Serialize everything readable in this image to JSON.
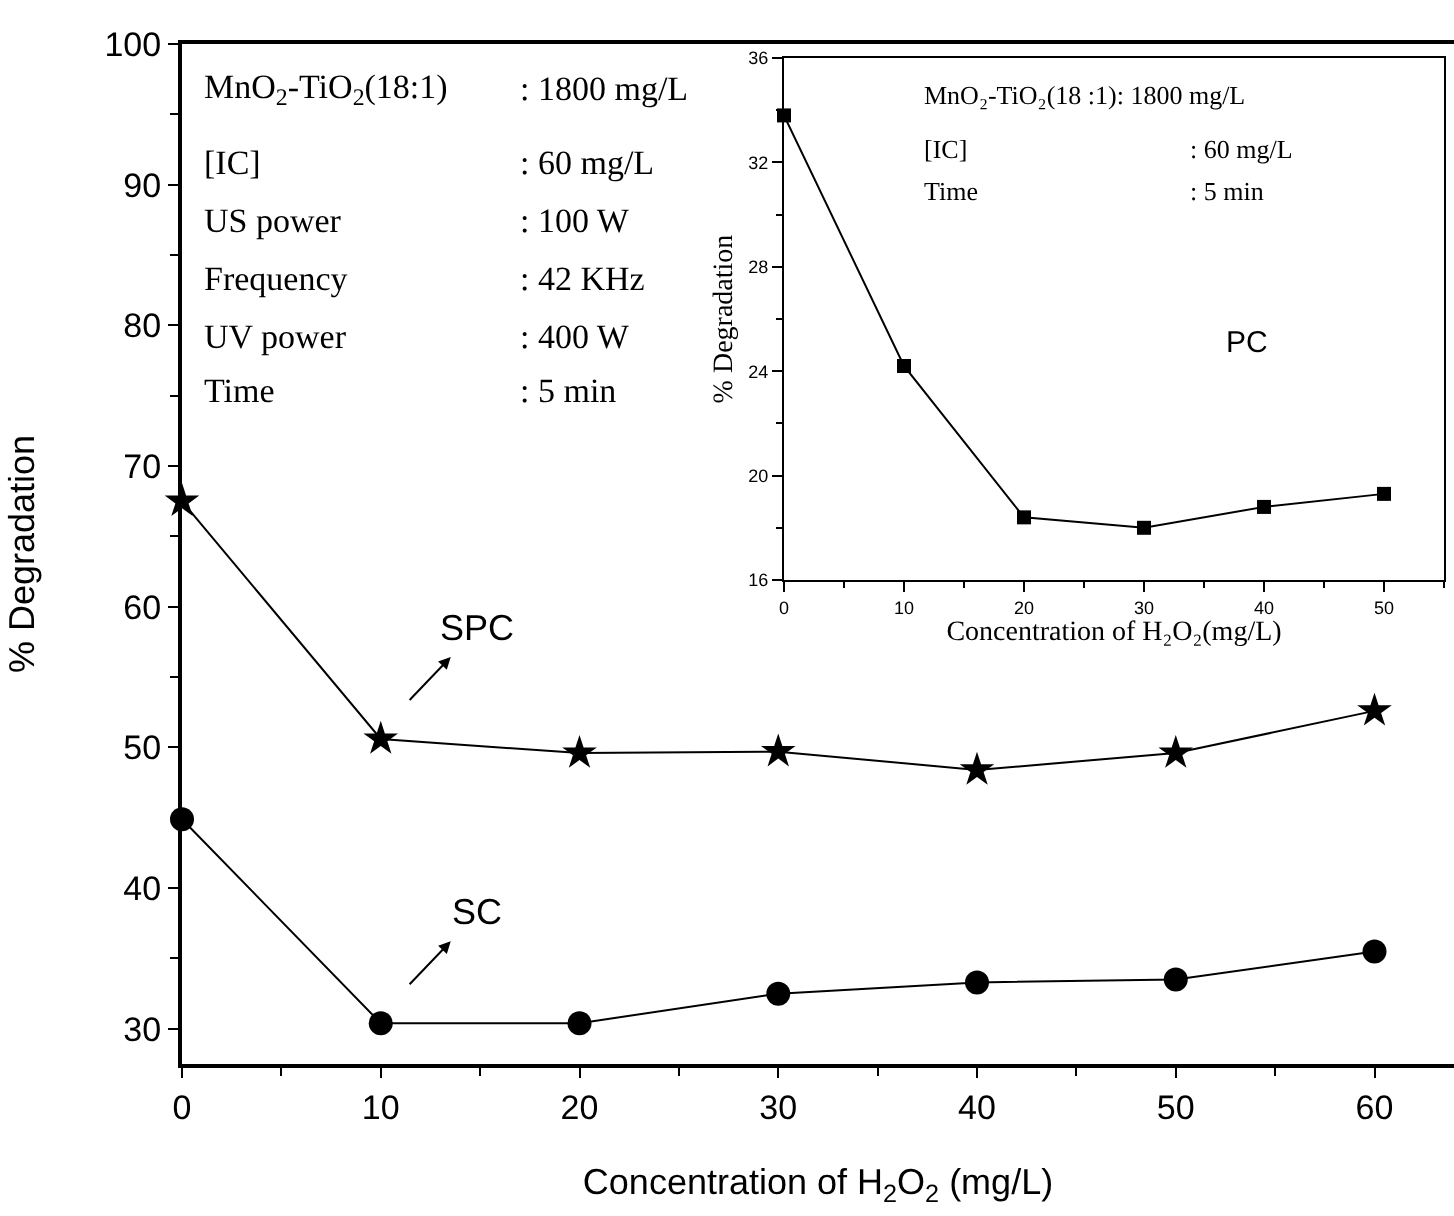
{
  "chart_data": [
    {
      "type": "line",
      "xlabel": "Concentration of H$_{2}$O$_{2}$ (mg/L)",
      "ylabel": "% Degradation",
      "x": [
        0,
        10,
        20,
        30,
        40,
        50,
        60
      ],
      "series": [
        {
          "name": "SPC",
          "color": "#000000",
          "marker": "star",
          "values": [
            67.5,
            50.6,
            49.6,
            49.7,
            48.4,
            49.6,
            52.6
          ]
        },
        {
          "name": "SC",
          "color": "#000000",
          "marker": "circle",
          "values": [
            44.9,
            30.4,
            30.4,
            32.5,
            33.3,
            33.5,
            35.5
          ]
        }
      ],
      "xlim": [
        0,
        64
      ],
      "ylim": [
        27.5,
        100
      ],
      "xticks": [
        0,
        10,
        20,
        30,
        40,
        50,
        60
      ],
      "yticks": [
        30,
        40,
        50,
        60,
        70,
        80,
        90,
        100
      ],
      "legend": false,
      "annotations": [
        "MnO$_{2}$-TiO$_{2}$(18:1)",
        ": 1800 mg/L",
        "[IC]",
        ": 60 mg/L",
        "US power",
        ": 100 W",
        "Frequency",
        ": 42 KHz",
        "UV power",
        ": 400 W",
        "Time",
        ": 5 min"
      ]
    },
    {
      "type": "line",
      "xlabel": "Concentration of H₂O₂(mg/L)",
      "ylabel": "% Degradation",
      "x": [
        0,
        10,
        20,
        30,
        40,
        50
      ],
      "series": [
        {
          "color": "#000000",
          "marker": "square",
          "values": [
            33.8,
            24.2,
            18.4,
            18.0,
            18.8,
            19.3
          ]
        }
      ],
      "xlim": [
        0,
        55
      ],
      "ylim": [
        16,
        36
      ],
      "xticks": [
        0,
        10,
        20,
        30,
        40,
        50
      ],
      "yticks": [
        16,
        20,
        24,
        28,
        32,
        36
      ],
      "legend": false,
      "annotations": [
        "MnO₂-TiO₂(18 :1): 1800 mg/L",
        "[IC]",
        ": 60 mg/L",
        "Time",
        ": 5 min",
        "PC"
      ]
    }
  ]
}
